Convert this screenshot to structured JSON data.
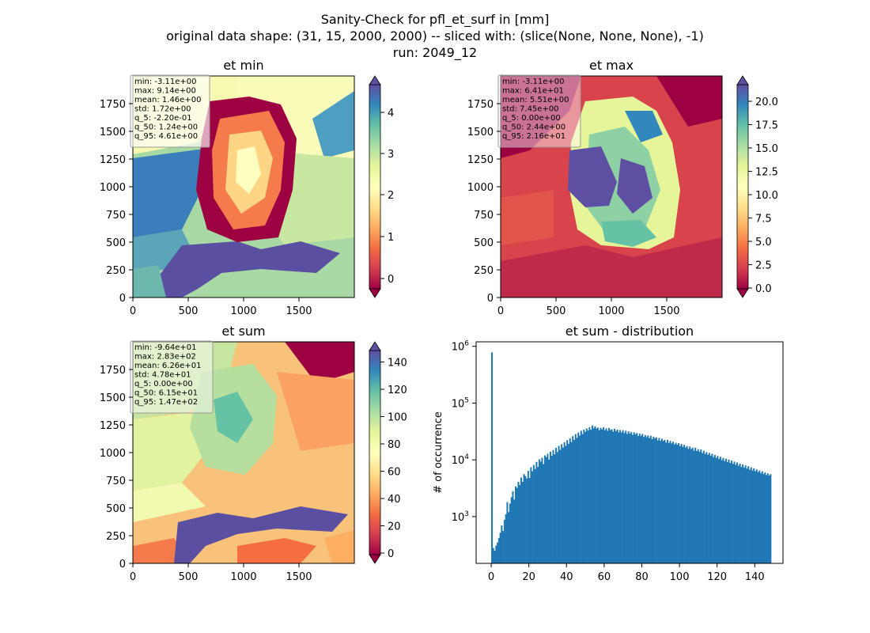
{
  "figure": {
    "title_lines": [
      "Sanity-Check for pfl_et_surf in [mm]",
      "original data shape: (31, 15, 2000, 2000) -- sliced with: (slice(None, None, None), -1)",
      "run: 2049_12"
    ]
  },
  "chart_data": [
    {
      "type": "heatmap",
      "title": "et min",
      "xlim": [
        0,
        2000
      ],
      "ylim": [
        0,
        2000
      ],
      "x_ticks": [
        "0",
        "500",
        "1000",
        "1500"
      ],
      "y_ticks": [
        "0",
        "250",
        "500",
        "750",
        "1000",
        "1250",
        "1500",
        "1750"
      ],
      "colormap": "Spectral",
      "color_range": [
        -0.4,
        4.9
      ],
      "colorbar_ticks": [
        "0",
        "1",
        "2",
        "3",
        "4"
      ],
      "stats_box": [
        "min: -3.11e+00",
        "max: 9.14e+00",
        "mean: 1.46e+00",
        "std: 1.72e+00",
        "q_5: -2.20e-01",
        "q_50: 1.24e+00",
        "q_95: 4.61e+00"
      ]
    },
    {
      "type": "heatmap",
      "title": "et max",
      "xlim": [
        0,
        2000
      ],
      "ylim": [
        0,
        2000
      ],
      "x_ticks": [
        "0",
        "500",
        "1000",
        "1500"
      ],
      "y_ticks": [
        "0",
        "250",
        "500",
        "750",
        "1000",
        "1250",
        "1500",
        "1750"
      ],
      "colormap": "Spectral",
      "color_range": [
        0,
        22
      ],
      "colorbar_ticks": [
        "0.0",
        "2.5",
        "5.0",
        "7.5",
        "10.0",
        "12.5",
        "15.0",
        "17.5",
        "20.0"
      ],
      "stats_box": [
        "min: -3.11e+00",
        "max: 6.41e+01",
        "mean: 5.51e+00",
        "std: 7.45e+00",
        "q_5: 0.00e+00",
        "q_50: 2.44e+00",
        "q_95: 2.16e+01"
      ]
    },
    {
      "type": "heatmap",
      "title": "et sum",
      "xlim": [
        0,
        2000
      ],
      "ylim": [
        0,
        2000
      ],
      "x_ticks": [
        "0",
        "500",
        "1000",
        "1500"
      ],
      "y_ticks": [
        "0",
        "250",
        "500",
        "750",
        "1000",
        "1250",
        "1500",
        "1750"
      ],
      "colormap": "Spectral",
      "color_range": [
        -5,
        150
      ],
      "colorbar_ticks": [
        "0",
        "20",
        "40",
        "60",
        "80",
        "100",
        "120",
        "140"
      ],
      "stats_box": [
        "min: -9.64e+01",
        "max: 2.83e+02",
        "mean: 6.26e+01",
        "std: 4.78e+01",
        "q_5: 0.00e+00",
        "q_50: 6.15e+01",
        "q_95: 1.47e+02"
      ]
    },
    {
      "type": "bar",
      "title": "et sum - distribution",
      "ylabel": "# of occurrence",
      "xlabel": "",
      "yscale": "log",
      "xlim": [
        -8,
        155
      ],
      "ylim": [
        150,
        1200000
      ],
      "x_ticks": [
        0,
        20,
        40,
        60,
        80,
        100,
        120,
        140
      ],
      "y_ticks": [
        {
          "value": 1000,
          "base": "10",
          "exp": "3"
        },
        {
          "value": 10000,
          "base": "10",
          "exp": "4"
        },
        {
          "value": 100000,
          "base": "10",
          "exp": "5"
        },
        {
          "value": 1000000,
          "base": "10",
          "exp": "6"
        }
      ],
      "bar_color": "#1f77b4",
      "bin_width": 0.74,
      "bins_start": 0,
      "values": [
        780000,
        280,
        250,
        310,
        350,
        420,
        520,
        700,
        560,
        880,
        1100,
        1800,
        1200,
        1700,
        2200,
        2800,
        2000,
        3400,
        3200,
        4100,
        3600,
        4900,
        4100,
        5600,
        5200,
        4700,
        6400,
        4800,
        7400,
        6300,
        8100,
        6900,
        9200,
        7500,
        10200,
        9300,
        10900,
        8400,
        12000,
        11200,
        12800,
        10100,
        13900,
        11800,
        14900,
        12500,
        16300,
        13700,
        17600,
        15000,
        18800,
        16400,
        20400,
        17600,
        22200,
        19100,
        24000,
        20500,
        26100,
        22400,
        28400,
        24300,
        30300,
        26700,
        32600,
        28400,
        34100,
        31200,
        35700,
        32800,
        37500,
        33900,
        40400,
        36000,
        38900,
        35600,
        37000,
        33200,
        36700,
        34500,
        37500,
        33300,
        35800,
        32400,
        36400,
        33600,
        34500,
        31300,
        35300,
        32200,
        34000,
        30500,
        33500,
        30400,
        33400,
        29700,
        32600,
        28600,
        31800,
        28900,
        31000,
        27600,
        30600,
        28100,
        29700,
        26300,
        29100,
        26500,
        28600,
        25300,
        27200,
        25100,
        27000,
        24200,
        26600,
        23200,
        25600,
        23800,
        24900,
        22000,
        24300,
        21600,
        23500,
        21600,
        22400,
        20100,
        22500,
        19900,
        21600,
        19500,
        20900,
        18700,
        20000,
        18400,
        19700,
        17500,
        19100,
        17000,
        18400,
        16500,
        17500,
        15600,
        17200,
        15500,
        16400,
        14500,
        16300,
        14300,
        15400,
        13900,
        15200,
        13200,
        14500,
        12700,
        13700,
        12300,
        13300,
        11800,
        12800,
        11200,
        12200,
        10800,
        11700,
        10300,
        11300,
        9900,
        10800,
        9500,
        10500,
        9100,
        10100,
        8800,
        9700,
        8500,
        9300,
        8200,
        9000,
        7900,
        8600,
        7500,
        8300,
        7300,
        8000,
        7000,
        7700,
        6700,
        7400,
        6500,
        7100,
        6300,
        6800,
        6100,
        6500,
        5800,
        6300,
        5600,
        6000,
        5400,
        5800,
        5300,
        5600
      ]
    }
  ]
}
